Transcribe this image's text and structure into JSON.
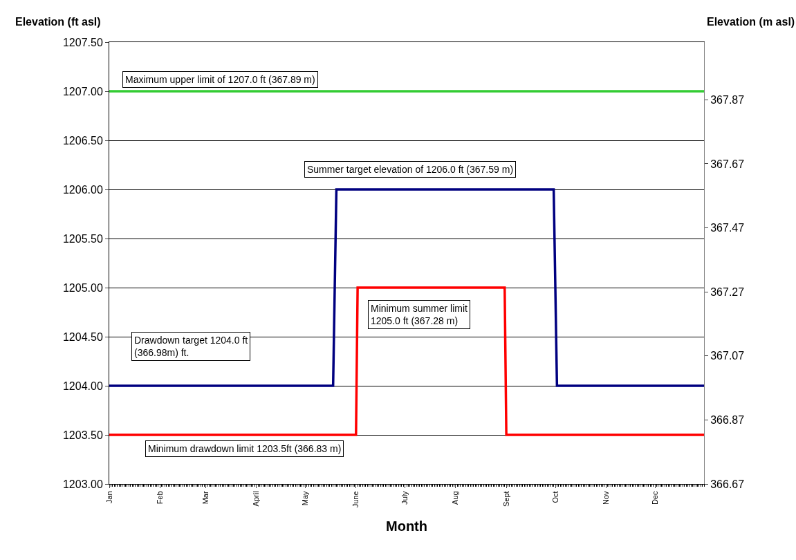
{
  "chart_data": {
    "type": "line",
    "xlabel": "Month",
    "ylabel": "Elevation (ft asl)",
    "y2label": "Elevation (m asl)",
    "series": [
      {
        "color": "#33cc33",
        "x": [
          "--01-01",
          "--12-31"
        ],
        "values": [
          1207,
          1207
        ]
      },
      {
        "color": "#000080",
        "x": [
          "--01-01",
          "--05-18",
          "--05-20",
          "--09-30",
          "--10-02",
          "--12-31"
        ],
        "values": [
          1204,
          1204,
          1206,
          1206,
          1204,
          1204
        ]
      },
      {
        "color": "#ff0000",
        "x": [
          "--01-01",
          "--06-01",
          "--06-02",
          "--08-31",
          "--09-01",
          "--12-31"
        ],
        "values": [
          1203.5,
          1203.5,
          1205,
          1205,
          1203.5,
          1203.5
        ]
      }
    ],
    "xlim": [
      "--01-01",
      "--12-31"
    ],
    "xticks": [
      {
        "value": "--01-01",
        "label": "Jan"
      },
      {
        "value": "--02-01",
        "label": "Feb"
      },
      {
        "value": "--03-01",
        "label": "Mar"
      },
      {
        "value": "--04-01",
        "label": "April"
      },
      {
        "value": "--05-01",
        "label": "May"
      },
      {
        "value": "--06-01",
        "label": "June"
      },
      {
        "value": "--07-01",
        "label": "July"
      },
      {
        "value": "--08-01",
        "label": "Aug"
      },
      {
        "value": "--09-01",
        "label": "Sept"
      },
      {
        "value": "--10-01",
        "label": "Oct"
      },
      {
        "value": "--11-01",
        "label": "Nov"
      },
      {
        "value": "--12-01",
        "label": "Dec"
      }
    ],
    "ylim": [
      1203,
      1207.5
    ],
    "yticks": [
      {
        "value": 1203,
        "label": "1203.00"
      },
      {
        "value": 1203.5,
        "label": "1203.50"
      },
      {
        "value": 1204,
        "label": "1204.00"
      },
      {
        "value": 1204.5,
        "label": "1204.50"
      },
      {
        "value": 1205,
        "label": "1205.00"
      },
      {
        "value": 1205.5,
        "label": "1205.50"
      },
      {
        "value": 1206,
        "label": "1206.00"
      },
      {
        "value": 1206.5,
        "label": "1206.50"
      },
      {
        "value": 1207,
        "label": "1207.00"
      },
      {
        "value": 1207.5,
        "label": "1207.50"
      }
    ],
    "y2lim": [
      366.67,
      368.05
    ],
    "y2ticks": [
      366.67,
      366.87,
      367.07,
      367.27,
      367.47,
      367.67,
      367.87
    ],
    "grid": "y",
    "marker": "none",
    "line_style": "solid",
    "annotations": [
      "Maximum upper limit of 1207.0 ft (367.89 m)",
      "Summer target elevation of 1206.0 ft (367.59 m)",
      "Minimum summer limit\n1205.0 ft (367.28 m)",
      "Drawdown target 1204.0 ft\n(366.98m) ft.",
      "Minimum drawdown limit 1203.5ft (366.83 m)"
    ]
  }
}
